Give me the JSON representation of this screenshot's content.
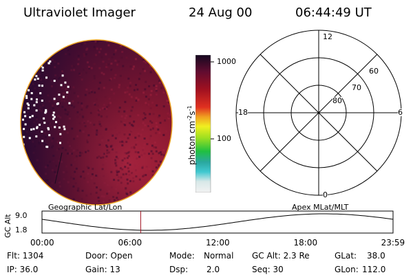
{
  "header": {
    "instrument": "Ultraviolet Imager",
    "date": "24 Aug 00",
    "time": "06:44:49 UT"
  },
  "colorbar": {
    "unit_label": "photon cm",
    "unit_exp1": "-2",
    "unit_mid": "s",
    "unit_exp2": "-1",
    "tick_high": "1000",
    "tick_low": "100"
  },
  "polar_plot": {
    "mlt_top": "12",
    "mlt_bottom": "0",
    "mlt_left": "18",
    "mlt_right": "6",
    "lat_60": "60",
    "lat_70": "70",
    "lat_80": "80"
  },
  "timeline": {
    "yaxis_label": "GC Alt",
    "y_high": "9.0",
    "y_low": "1.8",
    "left_title": "Geographic Lat/Lon",
    "right_title": "Apex MLat/MLT",
    "x_ticks": [
      "00:00",
      "06:00",
      "12:00",
      "18:00",
      "23:59"
    ],
    "cursor_hour": 6.75
  },
  "stats": {
    "flt": "Flt: 1304",
    "ip": "IP: 36.0",
    "door": "Door: Open",
    "gain": "Gain: 13",
    "mode_label": "Mode:",
    "mode_value": "Normal",
    "dsp_label": "Dsp:",
    "dsp_value": "2.0",
    "gcalt": "GC Alt: 2.3 Re",
    "seq": "Seq: 30",
    "glat_label": "GLat:",
    "glat_value": "38.0",
    "glon_label": "GLon:",
    "glon_value": "112.0"
  },
  "colors": {
    "disk_base": "#6a1028",
    "disk_dark": "#3a0c2e",
    "disk_bright": "#b8203a",
    "limb": "#e8a020",
    "cursor": "#a01020"
  }
}
